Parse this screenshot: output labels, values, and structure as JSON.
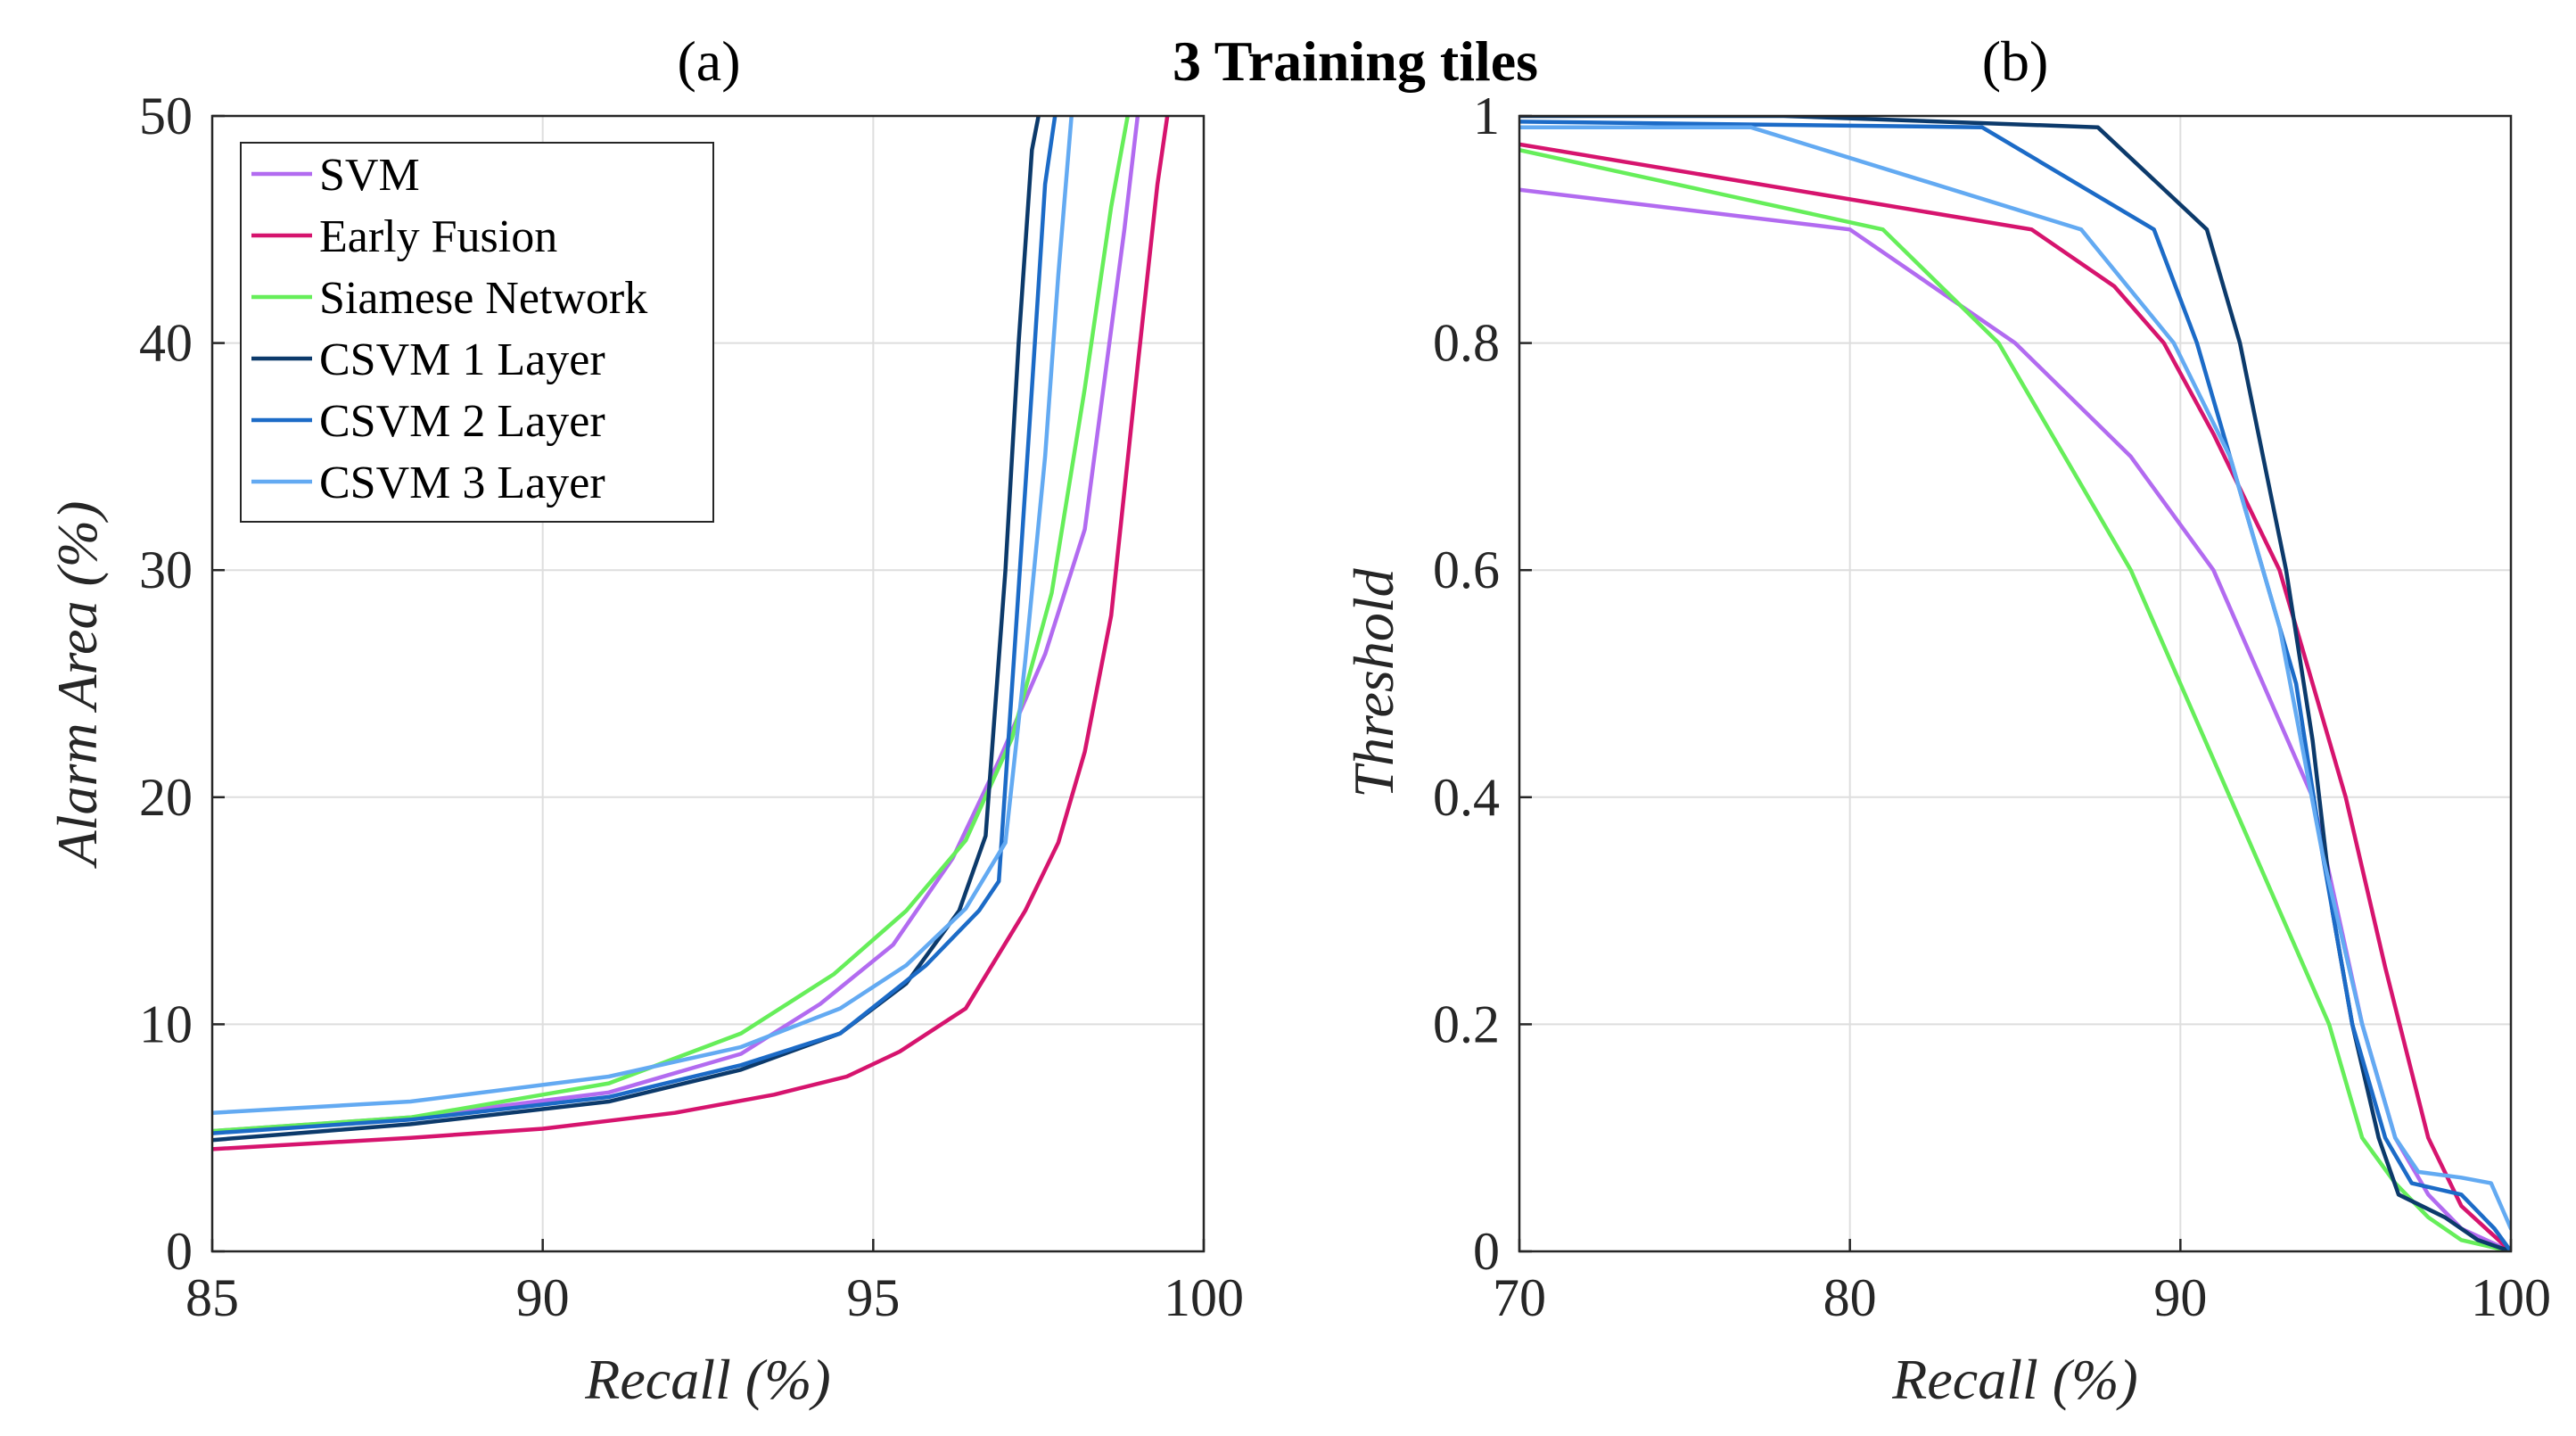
{
  "suptitle": "3 Training tiles",
  "colors": {
    "SVM": "#b26bf0",
    "Early Fusion": "#d6146e",
    "Siamese Network": "#66ee5a",
    "CSVM 1 Layer": "#0c3a6b",
    "CSVM 2 Layer": "#1c6bc7",
    "CSVM 3 Layer": "#63aaf2"
  },
  "chart_data": [
    {
      "type": "line",
      "title": "(a)",
      "xlabel": "Recall (%)",
      "ylabel": "Alarm Area (%)",
      "xlim": [
        85,
        100
      ],
      "ylim": [
        0,
        50
      ],
      "xticks": [
        85,
        90,
        95,
        100
      ],
      "yticks": [
        0,
        10,
        20,
        30,
        40,
        50
      ],
      "grid": true,
      "legend": "top-left",
      "series": [
        {
          "name": "SVM",
          "x": [
            85,
            88,
            91,
            93,
            94.2,
            95.3,
            96.2,
            96.9,
            97.6,
            98.2,
            98.8,
            99.0
          ],
          "y": [
            5.3,
            5.9,
            7.0,
            8.7,
            10.9,
            13.5,
            17.3,
            21.6,
            26.3,
            31.8,
            45.0,
            50.0
          ]
        },
        {
          "name": "Early Fusion",
          "x": [
            85,
            88,
            90,
            92,
            93.5,
            94.6,
            95.4,
            96.4,
            97.3,
            97.8,
            98.2,
            98.6,
            99.0,
            99.3,
            99.45
          ],
          "y": [
            4.5,
            5.0,
            5.4,
            6.1,
            6.9,
            7.7,
            8.8,
            10.7,
            15.0,
            18.0,
            22.0,
            28.0,
            39.0,
            47.0,
            50.0
          ]
        },
        {
          "name": "Siamese Network",
          "x": [
            85,
            88,
            91,
            93,
            94.4,
            95.5,
            96.4,
            97.1,
            97.7,
            98.2,
            98.6,
            98.85
          ],
          "y": [
            5.3,
            5.9,
            7.4,
            9.6,
            12.2,
            15.0,
            18.1,
            22.6,
            29.0,
            38.0,
            46.0,
            50.0
          ]
        },
        {
          "name": "CSVM 1 Layer",
          "x": [
            85,
            88,
            91,
            93,
            94.5,
            95.5,
            96.3,
            96.7,
            97.0,
            97.2,
            97.4,
            97.5
          ],
          "y": [
            4.9,
            5.6,
            6.6,
            8.0,
            9.6,
            11.8,
            15.0,
            18.3,
            30.0,
            40.0,
            48.5,
            50.0
          ]
        },
        {
          "name": "CSVM 2 Layer",
          "x": [
            85,
            88,
            91,
            93,
            94.5,
            95.8,
            96.6,
            96.9,
            97.15,
            97.4,
            97.6,
            97.75
          ],
          "y": [
            5.2,
            5.8,
            6.8,
            8.2,
            9.6,
            12.6,
            15.0,
            16.3,
            27.0,
            38.0,
            47.0,
            50.0
          ]
        },
        {
          "name": "CSVM 3 Layer",
          "x": [
            85,
            88,
            91,
            93,
            94.5,
            95.5,
            96.4,
            97.0,
            97.3,
            97.6,
            97.8,
            98.0
          ],
          "y": [
            6.1,
            6.6,
            7.7,
            9.0,
            10.7,
            12.6,
            15.1,
            18.0,
            26.0,
            35.0,
            43.0,
            50.0
          ]
        }
      ]
    },
    {
      "type": "line",
      "title": "(b)",
      "xlabel": "Recall (%)",
      "ylabel": "Threshold",
      "xlim": [
        70,
        100
      ],
      "ylim": [
        0,
        1
      ],
      "xticks": [
        70,
        80,
        90,
        100
      ],
      "yticks": [
        0,
        0.2,
        0.4,
        0.6,
        0.8,
        1
      ],
      "grid": true,
      "series": [
        {
          "name": "SVM",
          "x": [
            70,
            80,
            85,
            88.5,
            91,
            92.5,
            94,
            95.5,
            96.5,
            97.5,
            98.5,
            100
          ],
          "y": [
            0.935,
            0.9,
            0.8,
            0.7,
            0.6,
            0.5,
            0.4,
            0.2,
            0.1,
            0.05,
            0.02,
            0
          ]
        },
        {
          "name": "Early Fusion",
          "x": [
            70,
            85.5,
            88,
            89.5,
            91,
            93,
            95,
            96.2,
            97.5,
            98.5,
            100
          ],
          "y": [
            0.975,
            0.9,
            0.85,
            0.8,
            0.72,
            0.6,
            0.4,
            0.25,
            0.1,
            0.04,
            0
          ]
        },
        {
          "name": "Siamese Network",
          "x": [
            70,
            81,
            84.5,
            86.5,
            88.5,
            90,
            91.5,
            93,
            94.5,
            95.5,
            96.5,
            97.5,
            98.5,
            100
          ],
          "y": [
            0.97,
            0.9,
            0.8,
            0.7,
            0.6,
            0.5,
            0.4,
            0.3,
            0.2,
            0.1,
            0.06,
            0.03,
            0.01,
            0
          ]
        },
        {
          "name": "CSVM 1 Layer",
          "x": [
            70,
            78,
            87.5,
            90.8,
            91.8,
            92.5,
            93.2,
            94,
            94.6,
            95.2,
            96,
            96.6,
            98,
            99,
            100
          ],
          "y": [
            1.0,
            1.0,
            0.99,
            0.9,
            0.8,
            0.7,
            0.6,
            0.45,
            0.3,
            0.2,
            0.1,
            0.05,
            0.03,
            0.01,
            0
          ]
        },
        {
          "name": "CSVM 2 Layer",
          "x": [
            70,
            84,
            89.2,
            90.5,
            91.5,
            92.5,
            93.5,
            94.3,
            95.2,
            96.2,
            97,
            98.5,
            99.5,
            100
          ],
          "y": [
            0.995,
            0.99,
            0.9,
            0.8,
            0.7,
            0.6,
            0.5,
            0.35,
            0.2,
            0.1,
            0.06,
            0.05,
            0.02,
            0
          ]
        },
        {
          "name": "CSVM 3 Layer",
          "x": [
            70,
            77,
            87,
            89.8,
            91.5,
            93,
            94.3,
            95.5,
            96.5,
            97.2,
            98.5,
            99.4,
            100
          ],
          "y": [
            0.99,
            0.99,
            0.9,
            0.8,
            0.7,
            0.55,
            0.35,
            0.2,
            0.1,
            0.07,
            0.065,
            0.06,
            0.02
          ]
        }
      ]
    }
  ]
}
